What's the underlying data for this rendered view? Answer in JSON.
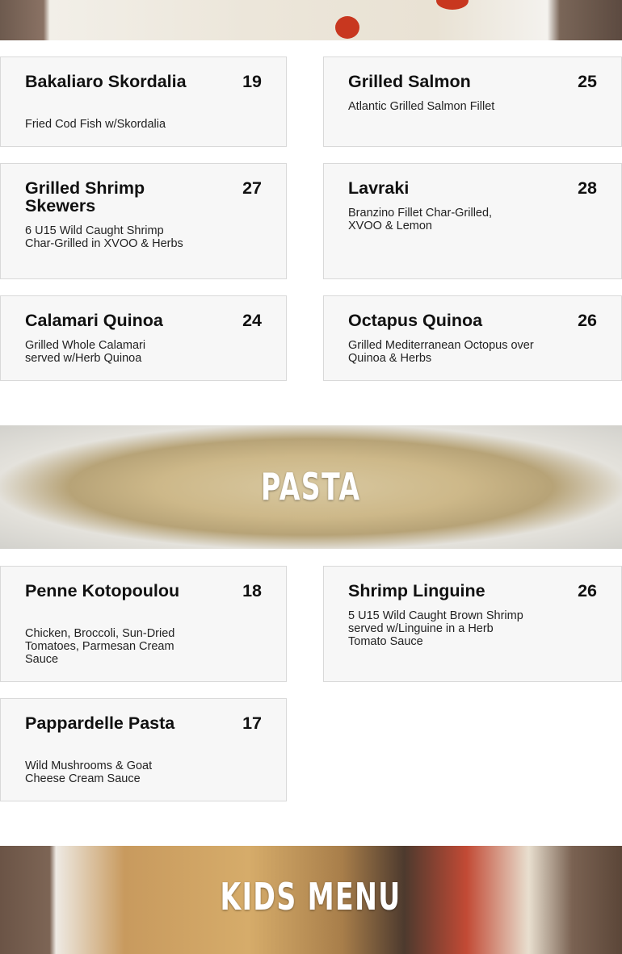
{
  "sections": {
    "pasta_title": "PASTA",
    "kids_title": "KIDS MENU"
  },
  "seafood": [
    {
      "name": "Bakaliaro Skordalia",
      "price": "19",
      "desc": "Fried Cod Fish w/Skordalia"
    },
    {
      "name": "Grilled Salmon",
      "price": "25",
      "desc": "Atlantic Grilled Salmon Fillet"
    },
    {
      "name": "Grilled Shrimp Skewers",
      "price": "27",
      "desc": "6 U15 Wild Caught Shrimp Char-Grilled in XVOO & Herbs"
    },
    {
      "name": "Lavraki",
      "price": "28",
      "desc": "Branzino Fillet Char-Grilled, XVOO & Lemon"
    },
    {
      "name": "Calamari Quinoa",
      "price": "24",
      "desc": "Grilled Whole Calamari served w/Herb Quinoa"
    },
    {
      "name": "Octapus Quinoa",
      "price": "26",
      "desc": "Grilled Mediterranean Octopus over Quinoa & Herbs"
    }
  ],
  "pasta": [
    {
      "name": "Penne Kotopoulou",
      "price": "18",
      "desc": "Chicken, Broccoli, Sun-Dried Tomatoes, Parmesan Cream Sauce"
    },
    {
      "name": "Shrimp Linguine",
      "price": "26",
      "desc": "5 U15 Wild Caught Brown Shrimp served w/Linguine in a Herb Tomato Sauce"
    },
    {
      "name": "Pappardelle Pasta",
      "price": "17",
      "desc": "Wild Mushrooms & Goat Cheese Cream Sauce"
    }
  ]
}
